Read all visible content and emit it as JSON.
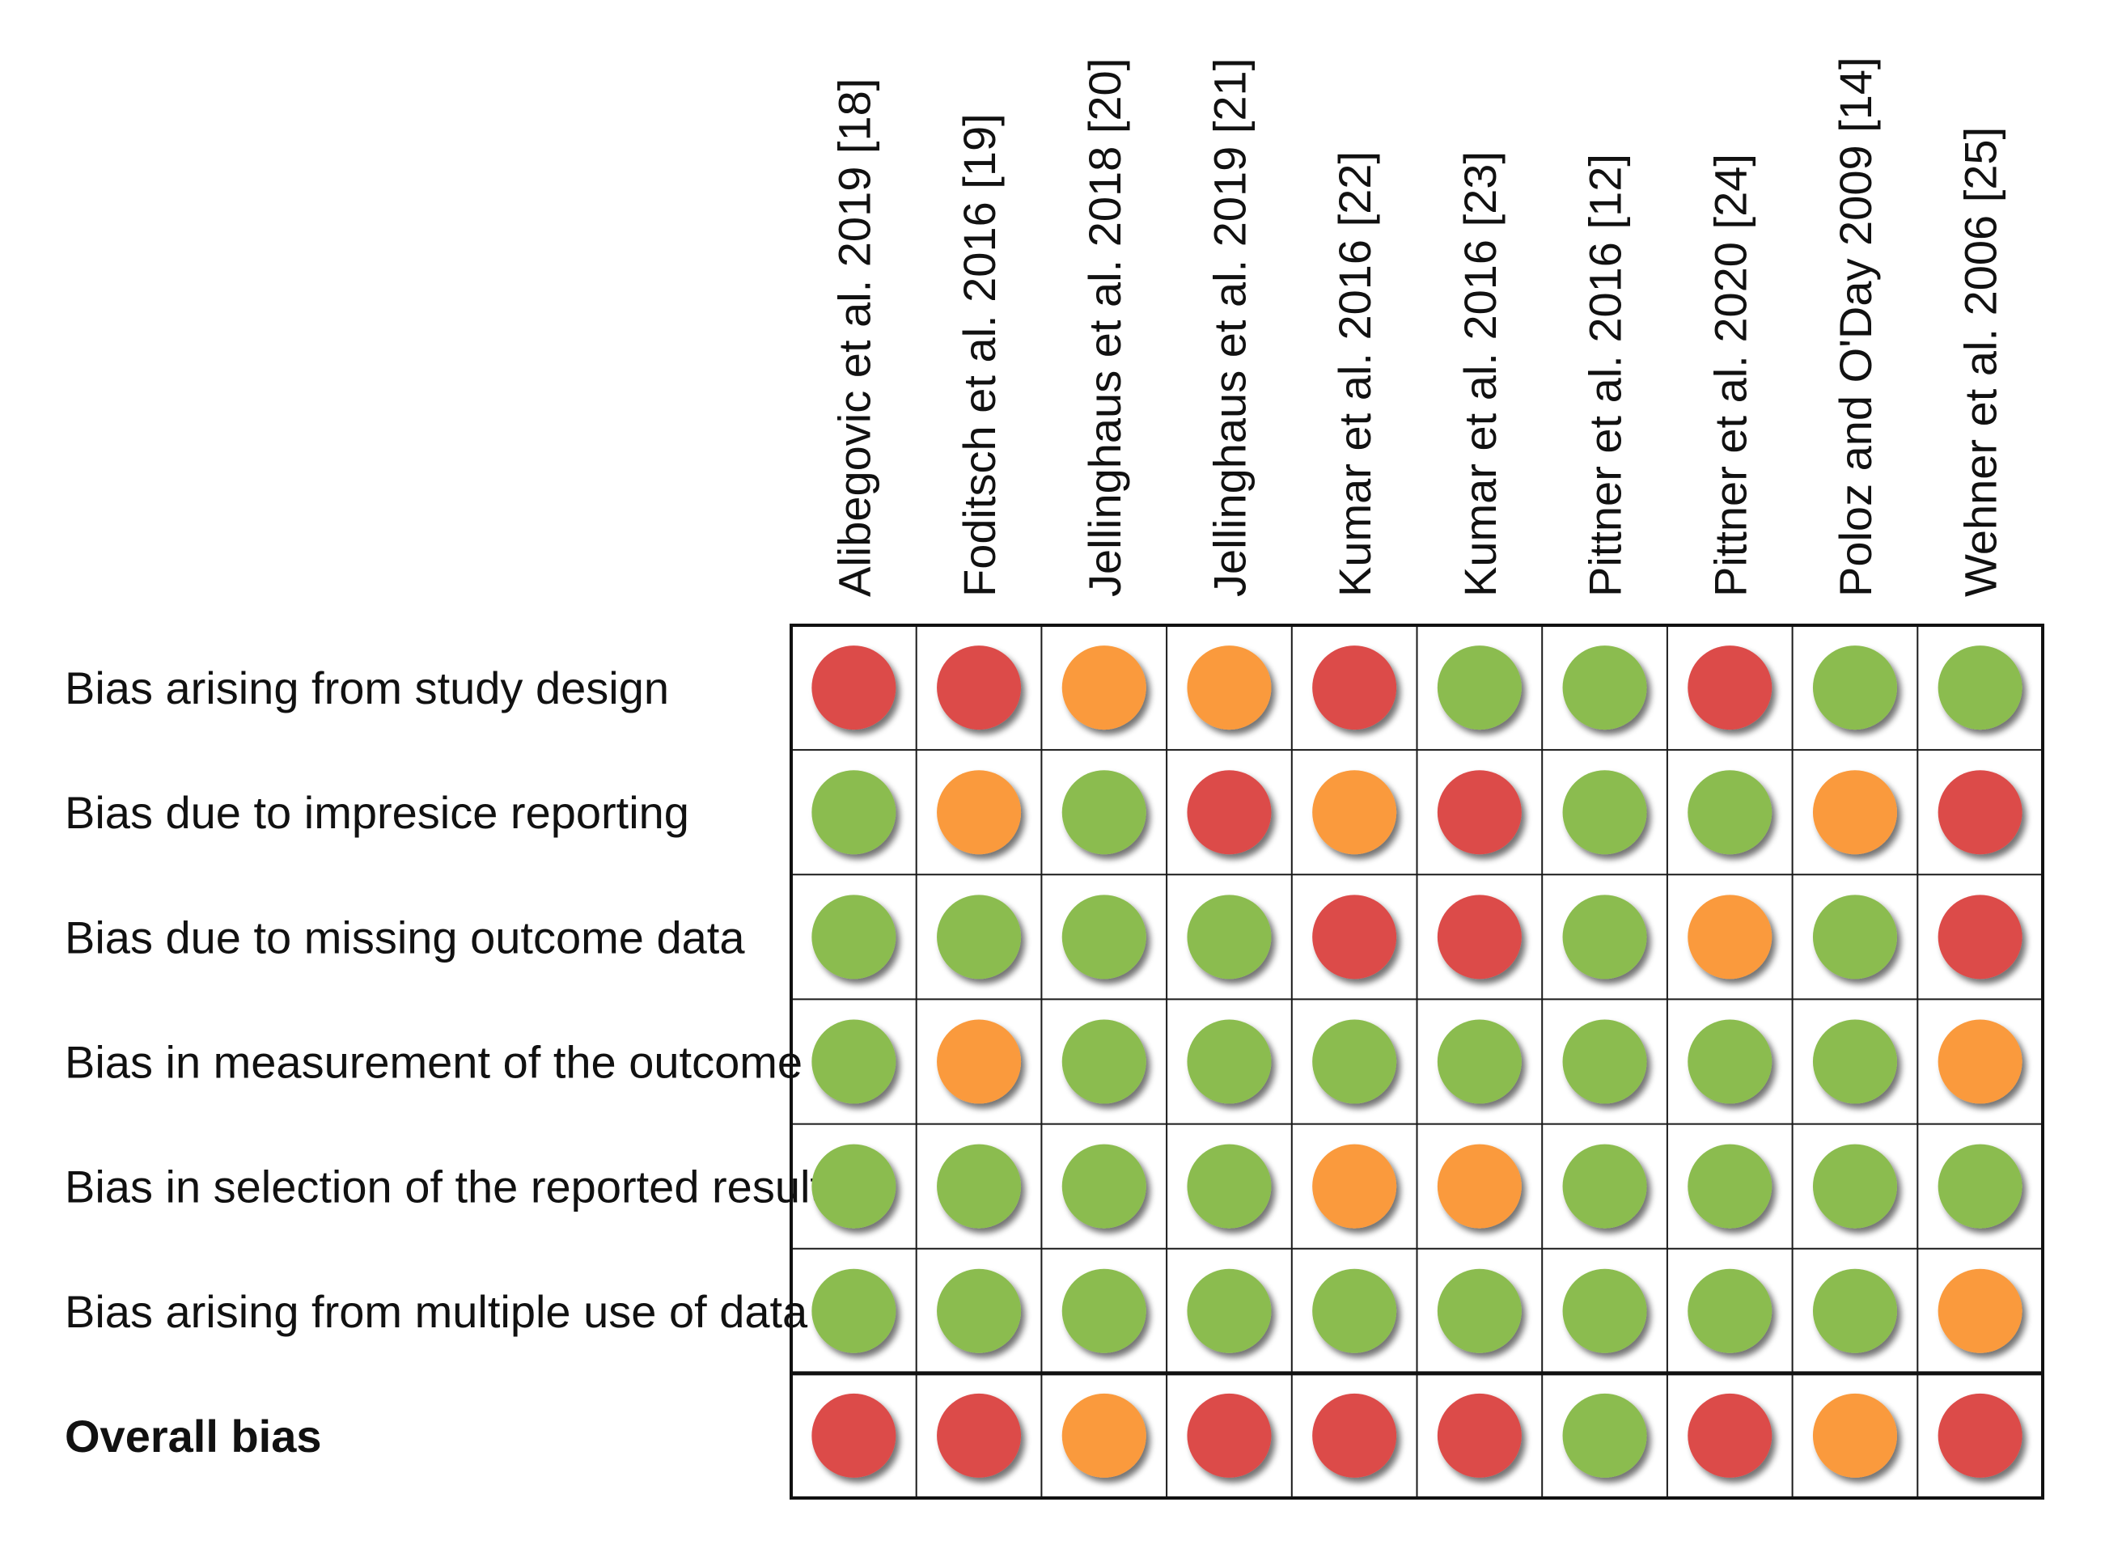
{
  "chart_data": {
    "type": "table",
    "title": "",
    "colors": {
      "low": "#8bbc4f",
      "some_concerns": "#fa9a3c",
      "high": "#dc4c4a"
    },
    "studies": [
      "Alibegovic et al. 2019 [18]",
      "Foditsch et al. 2016 [19]",
      "Jellinghaus et al. 2018 [20]",
      "Jellinghaus et al. 2019 [21]",
      "Kumar et al. 2016 [22]",
      "Kumar et al. 2016 [23]",
      "Pittner et al. 2016 [12]",
      "Pittner et al. 2020 [24]",
      "Poloz and O'Day 2009 [14]",
      "Wehner et al. 2006 [25]"
    ],
    "domains": [
      {
        "label": "Bias arising from study design",
        "bold": false,
        "ratings": [
          "high",
          "high",
          "some_concerns",
          "some_concerns",
          "high",
          "low",
          "low",
          "high",
          "low",
          "low"
        ]
      },
      {
        "label": "Bias due to impresice reporting",
        "bold": false,
        "ratings": [
          "low",
          "some_concerns",
          "low",
          "high",
          "some_concerns",
          "high",
          "low",
          "low",
          "some_concerns",
          "high"
        ]
      },
      {
        "label": "Bias due to missing outcome data",
        "bold": false,
        "ratings": [
          "low",
          "low",
          "low",
          "low",
          "high",
          "high",
          "low",
          "some_concerns",
          "low",
          "high"
        ]
      },
      {
        "label": "Bias in measurement of the outcome",
        "bold": false,
        "ratings": [
          "low",
          "some_concerns",
          "low",
          "low",
          "low",
          "low",
          "low",
          "low",
          "low",
          "some_concerns"
        ]
      },
      {
        "label": "Bias in selection of the reported result",
        "bold": false,
        "ratings": [
          "low",
          "low",
          "low",
          "low",
          "some_concerns",
          "some_concerns",
          "low",
          "low",
          "low",
          "low"
        ]
      },
      {
        "label": "Bias arising from multiple use of data",
        "bold": false,
        "ratings": [
          "low",
          "low",
          "low",
          "low",
          "low",
          "low",
          "low",
          "low",
          "low",
          "some_concerns"
        ]
      },
      {
        "label": "Overall bias",
        "bold": true,
        "ratings": [
          "high",
          "high",
          "some_concerns",
          "high",
          "high",
          "high",
          "low",
          "high",
          "some_concerns",
          "high"
        ]
      }
    ]
  }
}
